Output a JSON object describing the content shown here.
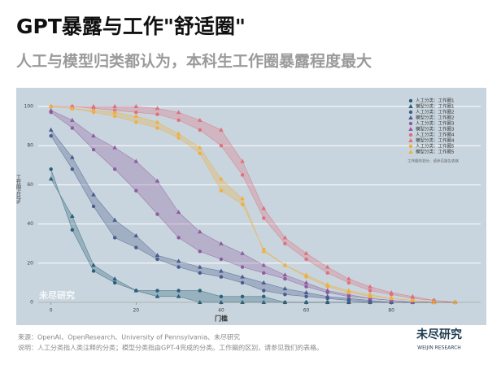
{
  "chart_data": {
    "type": "line",
    "title": "GPT暴露与工作\"舒适圈\"",
    "subtitle": "人工与模型归类都认为，本科生工作圈暴露程度最大",
    "x_label": "门槛",
    "y_label": "工作圈占比%",
    "legend_note": "工作圈的划分，请参见报告表格",
    "watermark": "未尽研究",
    "source": "来源：OpenAI、OpenResearch、University of Pennsylvania、未尽研究",
    "note": "说明：人工分类指人类注释的分类；模型分类指由GPT-4完成的分类。工作圈的区别，请参见我们的表格。",
    "logo": "未尽研究",
    "logo_sub": "WEIJIN RESEARCH",
    "x": [
      0,
      5,
      10,
      15,
      20,
      25,
      30,
      35,
      40,
      45,
      50,
      55,
      60,
      65,
      70,
      75,
      80,
      85,
      90,
      95
    ],
    "xlim": [
      -3,
      101
    ],
    "xticks": [
      0,
      20,
      40,
      60,
      80
    ],
    "ylim": [
      0,
      100
    ],
    "yticks": [
      0,
      20,
      40,
      60,
      80,
      100
    ],
    "grid": true,
    "legend_position": "upper right",
    "series": [
      {
        "name": "人工分类：工作圈1",
        "color": "#2a5f78",
        "marker": "circle",
        "values": [
          68,
          37,
          16,
          10,
          6,
          6,
          6,
          6,
          3,
          3,
          3,
          0,
          0,
          0,
          0,
          0,
          0,
          0,
          0,
          0
        ]
      },
      {
        "name": "模型分类：工作圈1",
        "color": "#2a5f78",
        "marker": "triangle",
        "values": [
          63,
          44,
          19,
          12,
          6,
          3,
          3,
          0,
          0,
          0,
          0,
          0,
          0,
          0,
          0,
          0,
          0,
          0,
          0,
          0
        ]
      },
      {
        "name": "人工分类：工作圈2",
        "color": "#4a5a8c",
        "marker": "circle",
        "values": [
          85,
          68,
          49,
          33,
          28,
          22,
          18,
          15,
          13,
          10,
          6,
          4,
          3,
          2,
          1,
          0,
          0,
          0,
          0,
          0
        ]
      },
      {
        "name": "模型分类：工作圈2",
        "color": "#4a5a8c",
        "marker": "triangle",
        "values": [
          88,
          74,
          55,
          42,
          34,
          24,
          21,
          18,
          16,
          13,
          10,
          7,
          5,
          3,
          2,
          1,
          0,
          0,
          0,
          0
        ]
      },
      {
        "name": "人工分类：工作圈3",
        "color": "#8e5c9e",
        "marker": "circle",
        "values": [
          97,
          89,
          78,
          68,
          57,
          45,
          33,
          26,
          22,
          18,
          15,
          12,
          8,
          5,
          3,
          2,
          1,
          0,
          0,
          0
        ]
      },
      {
        "name": "模型分类：工作圈3",
        "color": "#8e5c9e",
        "marker": "triangle",
        "values": [
          98,
          93,
          85,
          79,
          72,
          62,
          46,
          36,
          30,
          25,
          19,
          14,
          10,
          6,
          4,
          2,
          1,
          0,
          0,
          0
        ]
      },
      {
        "name": "人工分类：工作圈4",
        "color": "#e0707e",
        "marker": "circle",
        "values": [
          100,
          100,
          99,
          98,
          97,
          96,
          93,
          88,
          80,
          65,
          43,
          30,
          22,
          15,
          10,
          6,
          4,
          2,
          1,
          0
        ]
      },
      {
        "name": "模型分类：工作圈4",
        "color": "#e0707e",
        "marker": "triangle",
        "values": [
          100,
          100,
          100,
          100,
          100,
          99,
          97,
          93,
          88,
          72,
          48,
          33,
          25,
          18,
          12,
          8,
          5,
          3,
          1,
          0
        ]
      },
      {
        "name": "人工分类：工作圈5",
        "color": "#efb040",
        "marker": "circle",
        "values": [
          100,
          99,
          97,
          95,
          92,
          89,
          84,
          76,
          57,
          50,
          27,
          19,
          13,
          8,
          5,
          3,
          2,
          1,
          0,
          0
        ]
      },
      {
        "name": "模型分类：工作圈5",
        "color": "#efb040",
        "marker": "triangle",
        "values": [
          100,
          99,
          98,
          97,
          95,
          92,
          86,
          79,
          63,
          53,
          26,
          19,
          14,
          9,
          6,
          4,
          2,
          1,
          0,
          0
        ]
      }
    ]
  }
}
